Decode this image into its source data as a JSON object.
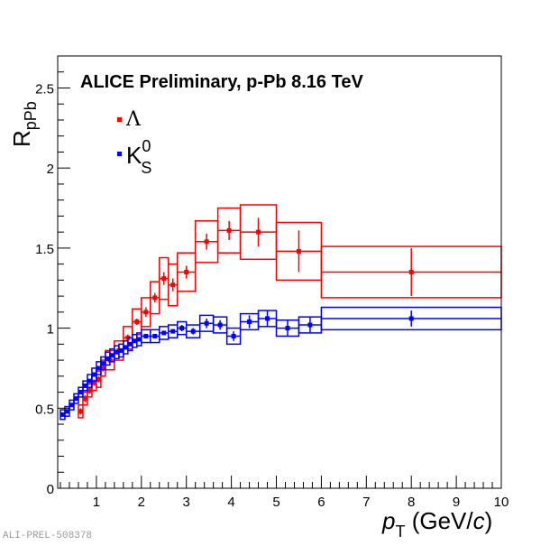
{
  "chart_data": {
    "type": "scatter",
    "title": "ALICE Preliminary, p-Pb 8.16 TeV",
    "xlabel": "p_T (GeV/c)",
    "xlabel_parts": {
      "var": "p",
      "sub": "T",
      "unit_open": " (GeV/",
      "unit_var": "c",
      "unit_close": ")"
    },
    "ylabel": "R_pPb",
    "ylabel_parts": {
      "main": "R",
      "sub": "pPb"
    },
    "xlim": [
      0.14,
      10
    ],
    "ylim": [
      0,
      2.7
    ],
    "xticks": [
      1,
      2,
      3,
      4,
      5,
      6,
      7,
      8,
      9,
      10
    ],
    "xtick_labels": [
      "1",
      "2",
      "3",
      "4",
      "5",
      "6",
      "7",
      "8",
      "9",
      "10"
    ],
    "yticks": [
      0,
      0.5,
      1,
      1.5,
      2,
      2.5
    ],
    "ytick_labels": [
      "0",
      "0.5",
      "1",
      "1.5",
      "2",
      "2.5"
    ],
    "legend_position": "top-left",
    "watermark": "ALI-PREL-508378",
    "series": [
      {
        "name": "Lambda",
        "legend_label": "Λ",
        "color": "#ff0000",
        "points": [
          {
            "x": 0.65,
            "xlo": 0.6,
            "xhi": 0.7,
            "y": 0.48,
            "stat": 0.02,
            "sys": 0.04
          },
          {
            "x": 0.75,
            "xlo": 0.7,
            "xhi": 0.8,
            "y": 0.56,
            "stat": 0.02,
            "sys": 0.04
          },
          {
            "x": 0.85,
            "xlo": 0.8,
            "xhi": 0.9,
            "y": 0.61,
            "stat": 0.02,
            "sys": 0.04
          },
          {
            "x": 0.95,
            "xlo": 0.9,
            "xhi": 1.0,
            "y": 0.66,
            "stat": 0.02,
            "sys": 0.05
          },
          {
            "x": 1.05,
            "xlo": 1.0,
            "xhi": 1.1,
            "y": 0.68,
            "stat": 0.02,
            "sys": 0.05
          },
          {
            "x": 1.15,
            "xlo": 1.1,
            "xhi": 1.2,
            "y": 0.75,
            "stat": 0.02,
            "sys": 0.05
          },
          {
            "x": 1.3,
            "xlo": 1.2,
            "xhi": 1.4,
            "y": 0.8,
            "stat": 0.02,
            "sys": 0.06
          },
          {
            "x": 1.5,
            "xlo": 1.4,
            "xhi": 1.6,
            "y": 0.86,
            "stat": 0.02,
            "sys": 0.06
          },
          {
            "x": 1.7,
            "xlo": 1.6,
            "xhi": 1.8,
            "y": 0.94,
            "stat": 0.02,
            "sys": 0.07
          },
          {
            "x": 1.9,
            "xlo": 1.8,
            "xhi": 2.0,
            "y": 1.04,
            "stat": 0.02,
            "sys": 0.08
          },
          {
            "x": 2.1,
            "xlo": 2.0,
            "xhi": 2.2,
            "y": 1.1,
            "stat": 0.03,
            "sys": 0.09
          },
          {
            "x": 2.3,
            "xlo": 2.2,
            "xhi": 2.4,
            "y": 1.19,
            "stat": 0.03,
            "sys": 0.1
          },
          {
            "x": 2.5,
            "xlo": 2.4,
            "xhi": 2.6,
            "y": 1.31,
            "stat": 0.04,
            "sys": 0.13
          },
          {
            "x": 2.7,
            "xlo": 2.6,
            "xhi": 2.8,
            "y": 1.27,
            "stat": 0.04,
            "sys": 0.13
          },
          {
            "x": 3.0,
            "xlo": 2.8,
            "xhi": 3.2,
            "y": 1.35,
            "stat": 0.04,
            "sys": 0.12
          },
          {
            "x": 3.45,
            "xlo": 3.2,
            "xhi": 3.7,
            "y": 1.54,
            "stat": 0.05,
            "sys": 0.13
          },
          {
            "x": 3.95,
            "xlo": 3.7,
            "xhi": 4.2,
            "y": 1.61,
            "stat": 0.06,
            "sys": 0.14
          },
          {
            "x": 4.6,
            "xlo": 4.2,
            "xhi": 5.0,
            "y": 1.6,
            "stat": 0.09,
            "sys": 0.17
          },
          {
            "x": 5.5,
            "xlo": 5.0,
            "xhi": 6.0,
            "y": 1.48,
            "stat": 0.13,
            "sys": 0.18
          },
          {
            "x": 8.0,
            "xlo": 6.0,
            "xhi": 10.0,
            "y": 1.35,
            "stat": 0.15,
            "sys": 0.16
          }
        ]
      },
      {
        "name": "K0S",
        "legend_label": "K",
        "legend_sup": "0",
        "legend_sub": "S",
        "color": "#0000ff",
        "points": [
          {
            "x": 0.25,
            "xlo": 0.2,
            "xhi": 0.3,
            "y": 0.46,
            "stat": 0.01,
            "sys": 0.03
          },
          {
            "x": 0.35,
            "xlo": 0.3,
            "xhi": 0.4,
            "y": 0.48,
            "stat": 0.01,
            "sys": 0.03
          },
          {
            "x": 0.45,
            "xlo": 0.4,
            "xhi": 0.5,
            "y": 0.52,
            "stat": 0.01,
            "sys": 0.03
          },
          {
            "x": 0.55,
            "xlo": 0.5,
            "xhi": 0.6,
            "y": 0.56,
            "stat": 0.01,
            "sys": 0.03
          },
          {
            "x": 0.65,
            "xlo": 0.6,
            "xhi": 0.7,
            "y": 0.6,
            "stat": 0.01,
            "sys": 0.03
          },
          {
            "x": 0.75,
            "xlo": 0.7,
            "xhi": 0.8,
            "y": 0.64,
            "stat": 0.01,
            "sys": 0.03
          },
          {
            "x": 0.85,
            "xlo": 0.8,
            "xhi": 0.9,
            "y": 0.67,
            "stat": 0.01,
            "sys": 0.04
          },
          {
            "x": 0.95,
            "xlo": 0.9,
            "xhi": 1.0,
            "y": 0.71,
            "stat": 0.01,
            "sys": 0.04
          },
          {
            "x": 1.05,
            "xlo": 1.0,
            "xhi": 1.1,
            "y": 0.75,
            "stat": 0.01,
            "sys": 0.04
          },
          {
            "x": 1.15,
            "xlo": 1.1,
            "xhi": 1.2,
            "y": 0.78,
            "stat": 0.01,
            "sys": 0.04
          },
          {
            "x": 1.25,
            "xlo": 1.2,
            "xhi": 1.3,
            "y": 0.81,
            "stat": 0.01,
            "sys": 0.04
          },
          {
            "x": 1.35,
            "xlo": 1.3,
            "xhi": 1.4,
            "y": 0.83,
            "stat": 0.01,
            "sys": 0.04
          },
          {
            "x": 1.45,
            "xlo": 1.4,
            "xhi": 1.5,
            "y": 0.85,
            "stat": 0.01,
            "sys": 0.04
          },
          {
            "x": 1.55,
            "xlo": 1.5,
            "xhi": 1.6,
            "y": 0.86,
            "stat": 0.01,
            "sys": 0.04
          },
          {
            "x": 1.65,
            "xlo": 1.6,
            "xhi": 1.7,
            "y": 0.88,
            "stat": 0.01,
            "sys": 0.04
          },
          {
            "x": 1.75,
            "xlo": 1.7,
            "xhi": 1.8,
            "y": 0.9,
            "stat": 0.01,
            "sys": 0.04
          },
          {
            "x": 1.85,
            "xlo": 1.8,
            "xhi": 1.9,
            "y": 0.92,
            "stat": 0.01,
            "sys": 0.04
          },
          {
            "x": 1.95,
            "xlo": 1.9,
            "xhi": 2.0,
            "y": 0.93,
            "stat": 0.01,
            "sys": 0.04
          },
          {
            "x": 2.1,
            "xlo": 2.0,
            "xhi": 2.2,
            "y": 0.95,
            "stat": 0.01,
            "sys": 0.04
          },
          {
            "x": 2.3,
            "xlo": 2.2,
            "xhi": 2.4,
            "y": 0.95,
            "stat": 0.01,
            "sys": 0.04
          },
          {
            "x": 2.5,
            "xlo": 2.4,
            "xhi": 2.6,
            "y": 0.97,
            "stat": 0.01,
            "sys": 0.04
          },
          {
            "x": 2.7,
            "xlo": 2.6,
            "xhi": 2.8,
            "y": 0.98,
            "stat": 0.01,
            "sys": 0.04
          },
          {
            "x": 2.9,
            "xlo": 2.8,
            "xhi": 3.0,
            "y": 1.0,
            "stat": 0.02,
            "sys": 0.04
          },
          {
            "x": 3.15,
            "xlo": 3.0,
            "xhi": 3.3,
            "y": 0.98,
            "stat": 0.02,
            "sys": 0.04
          },
          {
            "x": 3.45,
            "xlo": 3.3,
            "xhi": 3.6,
            "y": 1.03,
            "stat": 0.03,
            "sys": 0.05
          },
          {
            "x": 3.75,
            "xlo": 3.6,
            "xhi": 3.9,
            "y": 1.02,
            "stat": 0.03,
            "sys": 0.05
          },
          {
            "x": 4.05,
            "xlo": 3.9,
            "xhi": 4.2,
            "y": 0.95,
            "stat": 0.03,
            "sys": 0.05
          },
          {
            "x": 4.4,
            "xlo": 4.2,
            "xhi": 4.6,
            "y": 1.04,
            "stat": 0.04,
            "sys": 0.05
          },
          {
            "x": 4.8,
            "xlo": 4.6,
            "xhi": 5.0,
            "y": 1.06,
            "stat": 0.05,
            "sys": 0.05
          },
          {
            "x": 5.25,
            "xlo": 5.0,
            "xhi": 5.5,
            "y": 1.0,
            "stat": 0.05,
            "sys": 0.05
          },
          {
            "x": 5.75,
            "xlo": 5.5,
            "xhi": 6.0,
            "y": 1.02,
            "stat": 0.05,
            "sys": 0.05
          },
          {
            "x": 8.0,
            "xlo": 6.0,
            "xhi": 10.0,
            "y": 1.06,
            "stat": 0.05,
            "sys": 0.07
          }
        ]
      }
    ]
  }
}
